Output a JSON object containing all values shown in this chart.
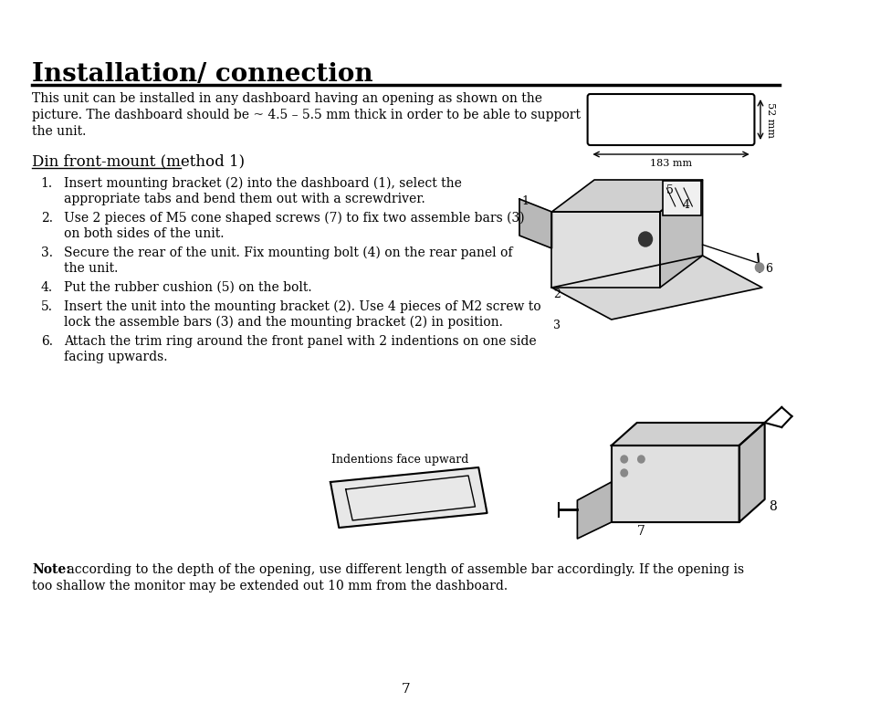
{
  "title": "Installation/ connection",
  "background_color": "#ffffff",
  "text_color": "#000000",
  "page_number": "7",
  "body_text_intro": "This unit can be installed in any dashboard having an opening as shown on the\npicture. The dashboard should be ~ 4.5 – 5.5 mm thick in order to be able to support\nthe unit.",
  "subheading": "Din front-mount (method 1)",
  "steps": [
    "Insert mounting bracket (2) into the dashboard (1), select the\nappropriate tabs and bend them out with a screwdriver.",
    "Use 2 pieces of M5 cone shaped screws (7) to fix two assemble bars (3)\non both sides of the unit.",
    "Secure the rear of the unit. Fix mounting bolt (4) on the rear panel of\nthe unit.",
    "Put the rubber cushion (5) on the bolt.",
    "Insert the unit into the mounting bracket (2). Use 4 pieces of M2 screw to\nlock the assemble bars (3) and the mounting bracket (2) in position.",
    "Attach the trim ring around the front panel with 2 indentions on one side\nfacing upwards."
  ],
  "note_bold": "Note:",
  "note_text": " according to the depth of the opening, use different length of assemble bar accordingly. If the opening is\ntoo shallow the monitor may be extended out 10 mm from the dashboard.",
  "dim_width_label": "183 mm",
  "dim_height_label": "52 mm",
  "indentions_label": "Indentions face upward"
}
